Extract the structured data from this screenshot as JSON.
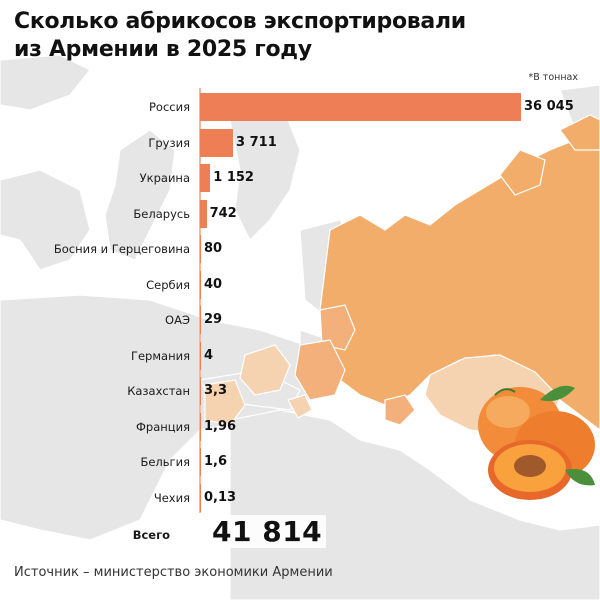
{
  "title_line1": "Сколько абрикосов экспортировали",
  "title_line2": "из Армении в 2025 году",
  "unit_note": "*В тоннах",
  "source": "Источник – министерство экономики Армении",
  "total": {
    "label": "Всего",
    "value": "41 814"
  },
  "colors": {
    "bar": "#ee7e55",
    "map_base": "#e5e5e5",
    "map_russia": "#f2ad6a",
    "map_light": "#f6d3b0"
  },
  "chart_data": {
    "type": "bar",
    "orientation": "horizontal",
    "categories": [
      "Россия",
      "Грузия",
      "Украина",
      "Беларусь",
      "Босния и Герцеговина",
      "Сербия",
      "ОАЭ",
      "Германия",
      "Казахстан",
      "Франция",
      "Бельгия",
      "Чехия"
    ],
    "values": [
      36045,
      3711,
      1152,
      742,
      80,
      40,
      29,
      4,
      3.3,
      1.96,
      1.6,
      0.13
    ],
    "value_labels": [
      "36 045",
      "3 711",
      "1 152",
      "742",
      "80",
      "40",
      "29",
      "4",
      "3,3",
      "1,96",
      "1,6",
      "0,13"
    ],
    "title": "Сколько абрикосов экспортировали из Армении в 2025 году",
    "xlabel": "",
    "ylabel": "",
    "grid": false,
    "legend": "none"
  }
}
